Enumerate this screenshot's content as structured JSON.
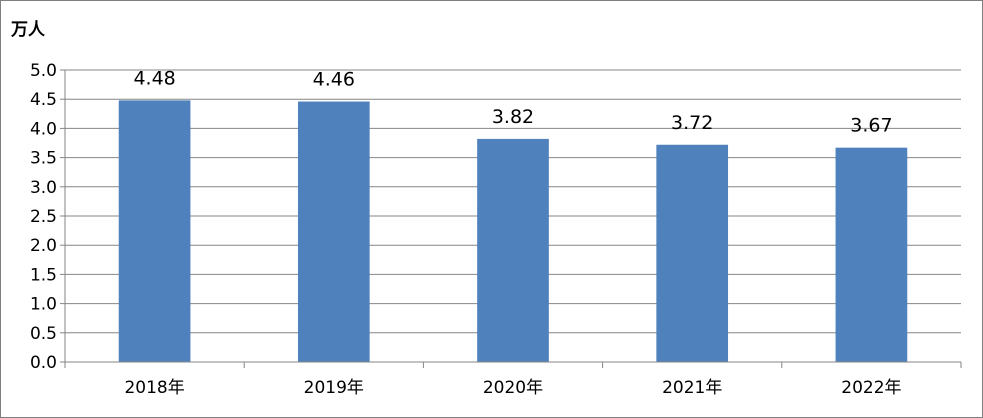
{
  "chart_data": {
    "type": "bar",
    "title": "",
    "ylabel": "万人",
    "xlabel": "",
    "categories": [
      "2018年",
      "2019年",
      "2020年",
      "2021年",
      "2022年"
    ],
    "values": [
      4.48,
      4.46,
      3.82,
      3.72,
      3.67
    ],
    "data_labels": [
      "4.48",
      "4.46",
      "3.82",
      "3.72",
      "3.67"
    ],
    "ylim": [
      0,
      5.0
    ],
    "y_ticks": [
      "0.0",
      "0.5",
      "1.0",
      "1.5",
      "2.0",
      "2.5",
      "3.0",
      "3.5",
      "4.0",
      "4.5",
      "5.0"
    ],
    "grid": true,
    "legend": "none",
    "bar_color": "#4f81bd",
    "gridline_color": "#868686"
  }
}
